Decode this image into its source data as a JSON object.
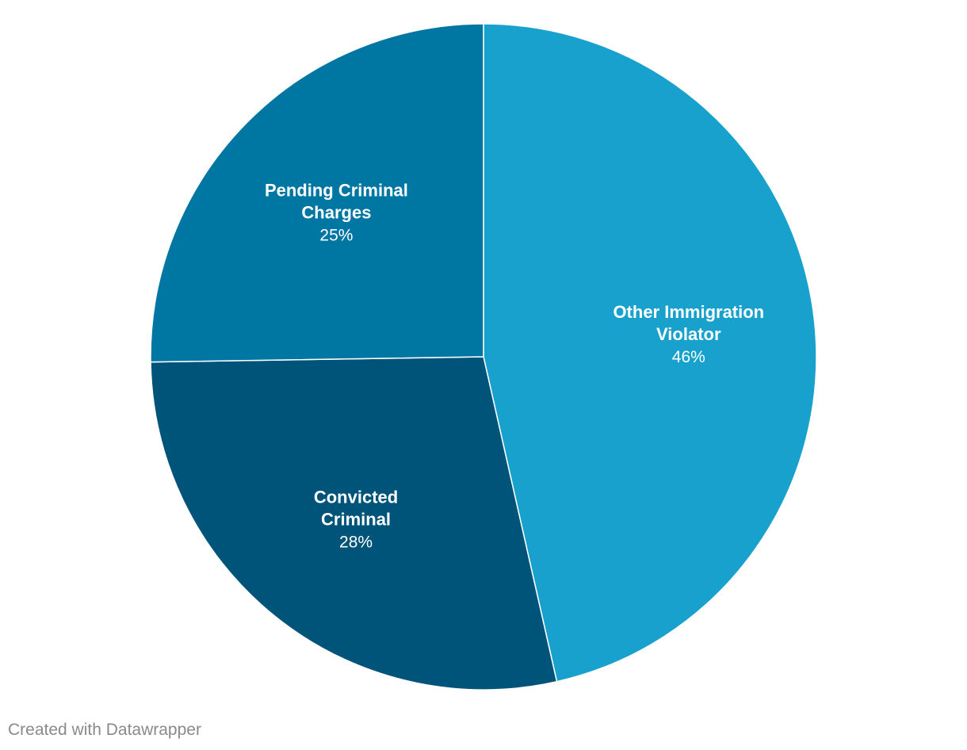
{
  "chart_data": {
    "type": "pie",
    "slices": [
      {
        "label_lines": [
          "Other Immigration",
          "Violator"
        ],
        "value": 46,
        "value_label": "46%",
        "color": "#18a1cd"
      },
      {
        "label_lines": [
          "Convicted",
          "Criminal"
        ],
        "value": 28,
        "value_label": "28%",
        "color": "#00547a"
      },
      {
        "label_lines": [
          "Pending Criminal",
          "Charges"
        ],
        "value": 25,
        "value_label": "25%",
        "color": "#0076a3"
      }
    ],
    "start": "12 o'clock",
    "direction": "clockwise",
    "legend": "none"
  },
  "footer": {
    "credit": "Created with Datawrapper"
  }
}
